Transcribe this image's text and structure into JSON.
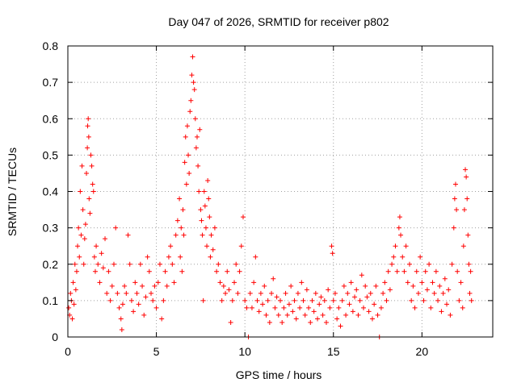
{
  "chart_data": {
    "type": "scatter",
    "title": "Day 047 of 2026, SRMTID for receiver p802",
    "xlabel": "GPS time / hours",
    "ylabel": "SRMTID / TECUs",
    "xlim": [
      0,
      24
    ],
    "ylim": [
      0,
      0.8
    ],
    "x_ticks": [
      {
        "value": 0,
        "label": "0"
      },
      {
        "value": 5,
        "label": "5"
      },
      {
        "value": 10,
        "label": "10"
      },
      {
        "value": 15,
        "label": "15"
      },
      {
        "value": 20,
        "label": "20"
      }
    ],
    "y_ticks": [
      {
        "value": 0,
        "label": "0"
      },
      {
        "value": 0.1,
        "label": "0.1"
      },
      {
        "value": 0.2,
        "label": "0.2"
      },
      {
        "value": 0.3,
        "label": "0.3"
      },
      {
        "value": 0.4,
        "label": "0.4"
      },
      {
        "value": 0.5,
        "label": "0.5"
      },
      {
        "value": 0.6,
        "label": "0.6"
      },
      {
        "value": 0.7,
        "label": "0.7"
      },
      {
        "value": 0.8,
        "label": "0.8"
      }
    ],
    "grid": true,
    "marker": "plus",
    "series": [
      {
        "name": "SRMTID",
        "color": "#ff0000",
        "points": [
          [
            0.05,
            0.08
          ],
          [
            0.1,
            0.06
          ],
          [
            0.15,
            0.12
          ],
          [
            0.2,
            0.1
          ],
          [
            0.25,
            0.05
          ],
          [
            0.3,
            0.15
          ],
          [
            0.35,
            0.09
          ],
          [
            0.4,
            0.2
          ],
          [
            0.45,
            0.13
          ],
          [
            0.5,
            0.18
          ],
          [
            0.55,
            0.25
          ],
          [
            0.6,
            0.3
          ],
          [
            0.65,
            0.22
          ],
          [
            0.7,
            0.4
          ],
          [
            0.75,
            0.28
          ],
          [
            0.8,
            0.47
          ],
          [
            0.85,
            0.35
          ],
          [
            0.9,
            0.2
          ],
          [
            0.95,
            0.27
          ],
          [
            1.0,
            0.31
          ],
          [
            1.05,
            0.45
          ],
          [
            1.1,
            0.52
          ],
          [
            1.12,
            0.58
          ],
          [
            1.15,
            0.6
          ],
          [
            1.18,
            0.55
          ],
          [
            1.2,
            0.38
          ],
          [
            1.25,
            0.34
          ],
          [
            1.3,
            0.5
          ],
          [
            1.35,
            0.47
          ],
          [
            1.4,
            0.42
          ],
          [
            1.45,
            0.4
          ],
          [
            1.5,
            0.22
          ],
          [
            1.55,
            0.18
          ],
          [
            1.6,
            0.25
          ],
          [
            1.7,
            0.2
          ],
          [
            1.8,
            0.15
          ],
          [
            1.9,
            0.23
          ],
          [
            2.0,
            0.19
          ],
          [
            2.1,
            0.27
          ],
          [
            2.2,
            0.12
          ],
          [
            2.3,
            0.18
          ],
          [
            2.4,
            0.1
          ],
          [
            2.5,
            0.14
          ],
          [
            2.6,
            0.2
          ],
          [
            2.7,
            0.3
          ],
          [
            2.8,
            0.12
          ],
          [
            2.9,
            0.08
          ],
          [
            3.0,
            0.05
          ],
          [
            3.05,
            0.02
          ],
          [
            3.1,
            0.09
          ],
          [
            3.2,
            0.14
          ],
          [
            3.3,
            0.12
          ],
          [
            3.4,
            0.28
          ],
          [
            3.5,
            0.2
          ],
          [
            3.6,
            0.1
          ],
          [
            3.7,
            0.07
          ],
          [
            3.8,
            0.15
          ],
          [
            3.9,
            0.12
          ],
          [
            4.0,
            0.09
          ],
          [
            4.1,
            0.2
          ],
          [
            4.2,
            0.14
          ],
          [
            4.3,
            0.06
          ],
          [
            4.4,
            0.11
          ],
          [
            4.5,
            0.22
          ],
          [
            4.6,
            0.18
          ],
          [
            4.7,
            0.12
          ],
          [
            4.8,
            0.1
          ],
          [
            4.9,
            0.14
          ],
          [
            5.0,
            0.08
          ],
          [
            5.1,
            0.15
          ],
          [
            5.2,
            0.2
          ],
          [
            5.3,
            0.05
          ],
          [
            5.4,
            0.1
          ],
          [
            5.5,
            0.18
          ],
          [
            5.6,
            0.14
          ],
          [
            5.7,
            0.22
          ],
          [
            5.8,
            0.25
          ],
          [
            5.9,
            0.2
          ],
          [
            6.0,
            0.15
          ],
          [
            6.1,
            0.28
          ],
          [
            6.2,
            0.32
          ],
          [
            6.3,
            0.38
          ],
          [
            6.35,
            0.22
          ],
          [
            6.4,
            0.3
          ],
          [
            6.45,
            0.18
          ],
          [
            6.5,
            0.35
          ],
          [
            6.55,
            0.28
          ],
          [
            6.6,
            0.48
          ],
          [
            6.65,
            0.55
          ],
          [
            6.7,
            0.42
          ],
          [
            6.75,
            0.58
          ],
          [
            6.8,
            0.5
          ],
          [
            6.85,
            0.45
          ],
          [
            6.9,
            0.62
          ],
          [
            6.95,
            0.65
          ],
          [
            7.0,
            0.72
          ],
          [
            7.05,
            0.77
          ],
          [
            7.1,
            0.7
          ],
          [
            7.15,
            0.68
          ],
          [
            7.2,
            0.6
          ],
          [
            7.25,
            0.52
          ],
          [
            7.3,
            0.55
          ],
          [
            7.35,
            0.47
          ],
          [
            7.4,
            0.4
          ],
          [
            7.45,
            0.57
          ],
          [
            7.5,
            0.35
          ],
          [
            7.55,
            0.32
          ],
          [
            7.6,
            0.28
          ],
          [
            7.65,
            0.1
          ],
          [
            7.7,
            0.4
          ],
          [
            7.75,
            0.36
          ],
          [
            7.8,
            0.3
          ],
          [
            7.85,
            0.25
          ],
          [
            7.9,
            0.43
          ],
          [
            7.95,
            0.38
          ],
          [
            8.0,
            0.33
          ],
          [
            8.05,
            0.22
          ],
          [
            8.1,
            0.28
          ],
          [
            8.2,
            0.24
          ],
          [
            8.3,
            0.3
          ],
          [
            8.4,
            0.18
          ],
          [
            8.5,
            0.2
          ],
          [
            8.6,
            0.15
          ],
          [
            8.7,
            0.1
          ],
          [
            8.8,
            0.14
          ],
          [
            8.9,
            0.12
          ],
          [
            9.0,
            0.18
          ],
          [
            9.1,
            0.13
          ],
          [
            9.2,
            0.04
          ],
          [
            9.3,
            0.1
          ],
          [
            9.4,
            0.15
          ],
          [
            9.5,
            0.2
          ],
          [
            9.6,
            0.12
          ],
          [
            9.7,
            0.18
          ],
          [
            9.8,
            0.25
          ],
          [
            9.9,
            0.33
          ],
          [
            10.0,
            0.1
          ],
          [
            10.1,
            0.08
          ],
          [
            10.2,
            0.0
          ],
          [
            10.3,
            0.12
          ],
          [
            10.4,
            0.08
          ],
          [
            10.5,
            0.15
          ],
          [
            10.6,
            0.22
          ],
          [
            10.7,
            0.1
          ],
          [
            10.8,
            0.07
          ],
          [
            10.9,
            0.12
          ],
          [
            11.0,
            0.09
          ],
          [
            11.1,
            0.14
          ],
          [
            11.2,
            0.06
          ],
          [
            11.3,
            0.1
          ],
          [
            11.4,
            0.04
          ],
          [
            11.5,
            0.12
          ],
          [
            11.6,
            0.16
          ],
          [
            11.7,
            0.08
          ],
          [
            11.8,
            0.11
          ],
          [
            11.9,
            0.06
          ],
          [
            12.0,
            0.1
          ],
          [
            12.1,
            0.04
          ],
          [
            12.2,
            0.08
          ],
          [
            12.3,
            0.12
          ],
          [
            12.4,
            0.06
          ],
          [
            12.5,
            0.09
          ],
          [
            12.6,
            0.14
          ],
          [
            12.7,
            0.07
          ],
          [
            12.8,
            0.1
          ],
          [
            12.9,
            0.05
          ],
          [
            13.0,
            0.12
          ],
          [
            13.1,
            0.08
          ],
          [
            13.2,
            0.15
          ],
          [
            13.3,
            0.1
          ],
          [
            13.4,
            0.06
          ],
          [
            13.5,
            0.13
          ],
          [
            13.6,
            0.08
          ],
          [
            13.7,
            0.04
          ],
          [
            13.8,
            0.1
          ],
          [
            13.9,
            0.07
          ],
          [
            14.0,
            0.12
          ],
          [
            14.1,
            0.05
          ],
          [
            14.2,
            0.09
          ],
          [
            14.3,
            0.11
          ],
          [
            14.4,
            0.06
          ],
          [
            14.5,
            0.1
          ],
          [
            14.6,
            0.04
          ],
          [
            14.7,
            0.13
          ],
          [
            14.8,
            0.08
          ],
          [
            14.9,
            0.25
          ],
          [
            14.95,
            0.23
          ],
          [
            15.0,
            0.1
          ],
          [
            15.1,
            0.12
          ],
          [
            15.2,
            0.05
          ],
          [
            15.3,
            0.08
          ],
          [
            15.4,
            0.03
          ],
          [
            15.5,
            0.1
          ],
          [
            15.6,
            0.14
          ],
          [
            15.7,
            0.06
          ],
          [
            15.8,
            0.12
          ],
          [
            15.9,
            0.09
          ],
          [
            16.0,
            0.15
          ],
          [
            16.1,
            0.07
          ],
          [
            16.2,
            0.11
          ],
          [
            16.3,
            0.13
          ],
          [
            16.4,
            0.06
          ],
          [
            16.5,
            0.1
          ],
          [
            16.6,
            0.17
          ],
          [
            16.7,
            0.08
          ],
          [
            16.8,
            0.14
          ],
          [
            16.9,
            0.11
          ],
          [
            17.0,
            0.07
          ],
          [
            17.1,
            0.12
          ],
          [
            17.2,
            0.05
          ],
          [
            17.3,
            0.09
          ],
          [
            17.4,
            0.14
          ],
          [
            17.5,
            0.06
          ],
          [
            17.6,
            0.0
          ],
          [
            17.7,
            0.08
          ],
          [
            17.8,
            0.12
          ],
          [
            17.9,
            0.15
          ],
          [
            18.0,
            0.1
          ],
          [
            18.1,
            0.18
          ],
          [
            18.2,
            0.13
          ],
          [
            18.3,
            0.2
          ],
          [
            18.4,
            0.22
          ],
          [
            18.5,
            0.25
          ],
          [
            18.6,
            0.18
          ],
          [
            18.7,
            0.3
          ],
          [
            18.75,
            0.33
          ],
          [
            18.8,
            0.28
          ],
          [
            18.9,
            0.22
          ],
          [
            19.0,
            0.18
          ],
          [
            19.1,
            0.25
          ],
          [
            19.2,
            0.15
          ],
          [
            19.3,
            0.2
          ],
          [
            19.4,
            0.1
          ],
          [
            19.5,
            0.14
          ],
          [
            19.6,
            0.08
          ],
          [
            19.7,
            0.18
          ],
          [
            19.8,
            0.12
          ],
          [
            19.9,
            0.22
          ],
          [
            20.0,
            0.15
          ],
          [
            20.1,
            0.1
          ],
          [
            20.2,
            0.18
          ],
          [
            20.3,
            0.13
          ],
          [
            20.4,
            0.2
          ],
          [
            20.5,
            0.08
          ],
          [
            20.6,
            0.15
          ],
          [
            20.7,
            0.12
          ],
          [
            20.8,
            0.18
          ],
          [
            20.9,
            0.1
          ],
          [
            21.0,
            0.14
          ],
          [
            21.1,
            0.07
          ],
          [
            21.2,
            0.12
          ],
          [
            21.3,
            0.16
          ],
          [
            21.4,
            0.09
          ],
          [
            21.5,
            0.13
          ],
          [
            21.6,
            0.06
          ],
          [
            21.7,
            0.2
          ],
          [
            21.8,
            0.3
          ],
          [
            21.85,
            0.38
          ],
          [
            21.9,
            0.42
          ],
          [
            21.95,
            0.35
          ],
          [
            22.0,
            0.18
          ],
          [
            22.1,
            0.1
          ],
          [
            22.2,
            0.15
          ],
          [
            22.3,
            0.08
          ],
          [
            22.35,
            0.25
          ],
          [
            22.4,
            0.35
          ],
          [
            22.45,
            0.46
          ],
          [
            22.5,
            0.44
          ],
          [
            22.55,
            0.38
          ],
          [
            22.6,
            0.28
          ],
          [
            22.65,
            0.2
          ],
          [
            22.7,
            0.12
          ],
          [
            22.75,
            0.18
          ],
          [
            22.8,
            0.1
          ]
        ]
      }
    ]
  }
}
